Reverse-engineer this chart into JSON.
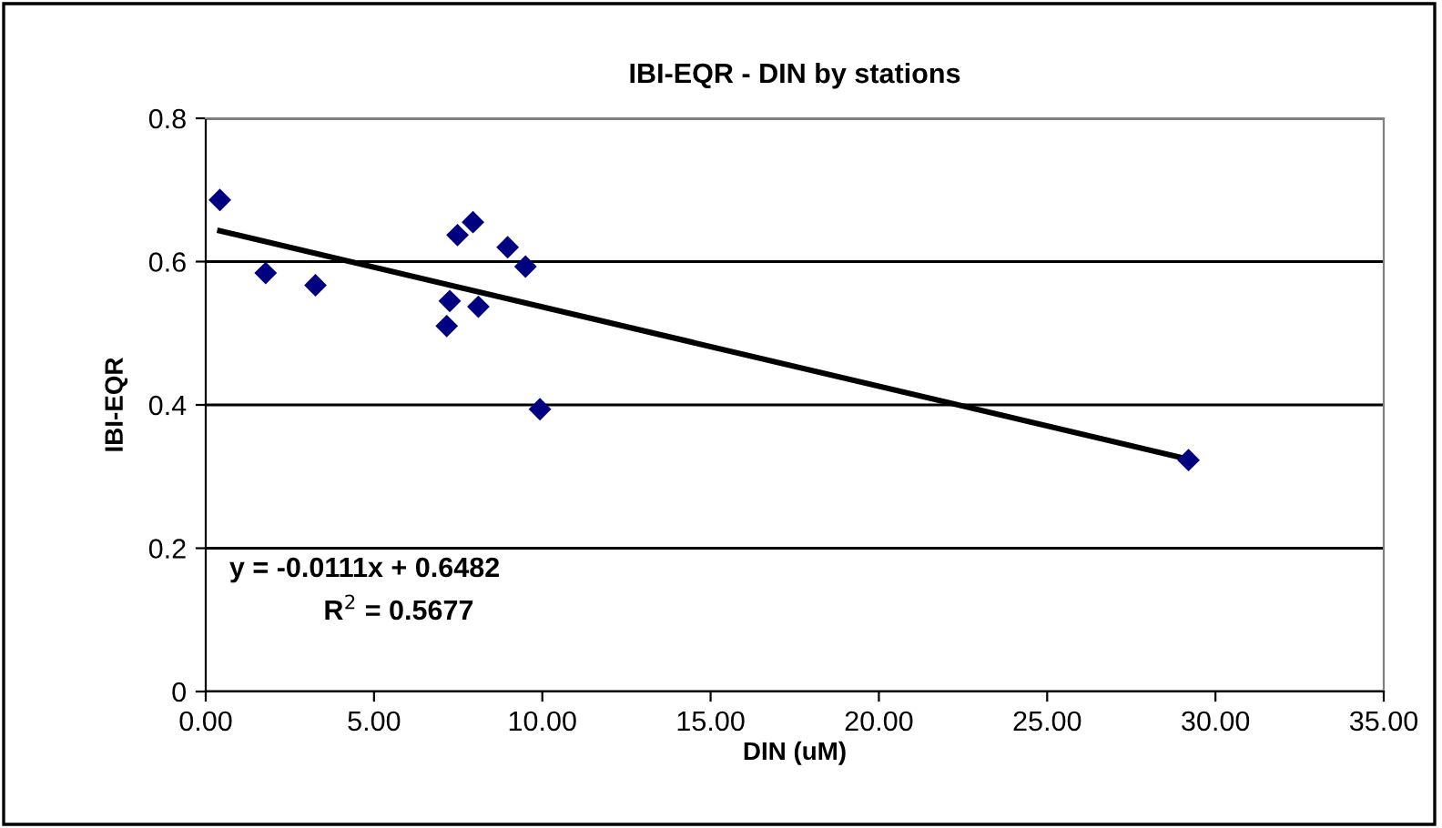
{
  "chart_data": {
    "type": "scatter",
    "title": "IBI-EQR - DIN by stations",
    "xlabel": "DIN (uM)",
    "ylabel": "IBI-EQR",
    "series": [
      {
        "color": "#000080",
        "x": [
          0.42,
          1.78,
          3.26,
          7.16,
          7.25,
          7.48,
          7.94,
          8.1,
          8.97,
          9.5,
          9.93,
          29.2
        ],
        "values": [
          0.686,
          0.584,
          0.567,
          0.51,
          0.545,
          0.637,
          0.655,
          0.537,
          0.62,
          0.593,
          0.394,
          0.323
        ],
        "marker": "diamond"
      },
      {
        "type": "line",
        "color": "#000000",
        "x": [
          0.42,
          29.2
        ],
        "values": [
          0.643,
          0.324
        ],
        "marker": "none",
        "line_style": "solid"
      }
    ],
    "annotations": [
      "y = -0.0111x + 0.6482",
      "R$^{2}$ = 0.5677"
    ],
    "xlim": [
      0,
      35
    ],
    "xticks": [
      {
        "value": 0,
        "label": "0.00"
      },
      {
        "value": 5,
        "label": "5.00"
      },
      {
        "value": 10,
        "label": "10.00"
      },
      {
        "value": 15,
        "label": "15.00"
      },
      {
        "value": 20,
        "label": "20.00"
      },
      {
        "value": 25,
        "label": "25.00"
      },
      {
        "value": 30,
        "label": "30.00"
      },
      {
        "value": 35,
        "label": "35.00"
      }
    ],
    "ylim": [
      0,
      0.8
    ],
    "yticks": [
      0,
      0.2,
      0.4,
      0.6,
      0.8
    ],
    "grid": "y",
    "legend": false
  }
}
